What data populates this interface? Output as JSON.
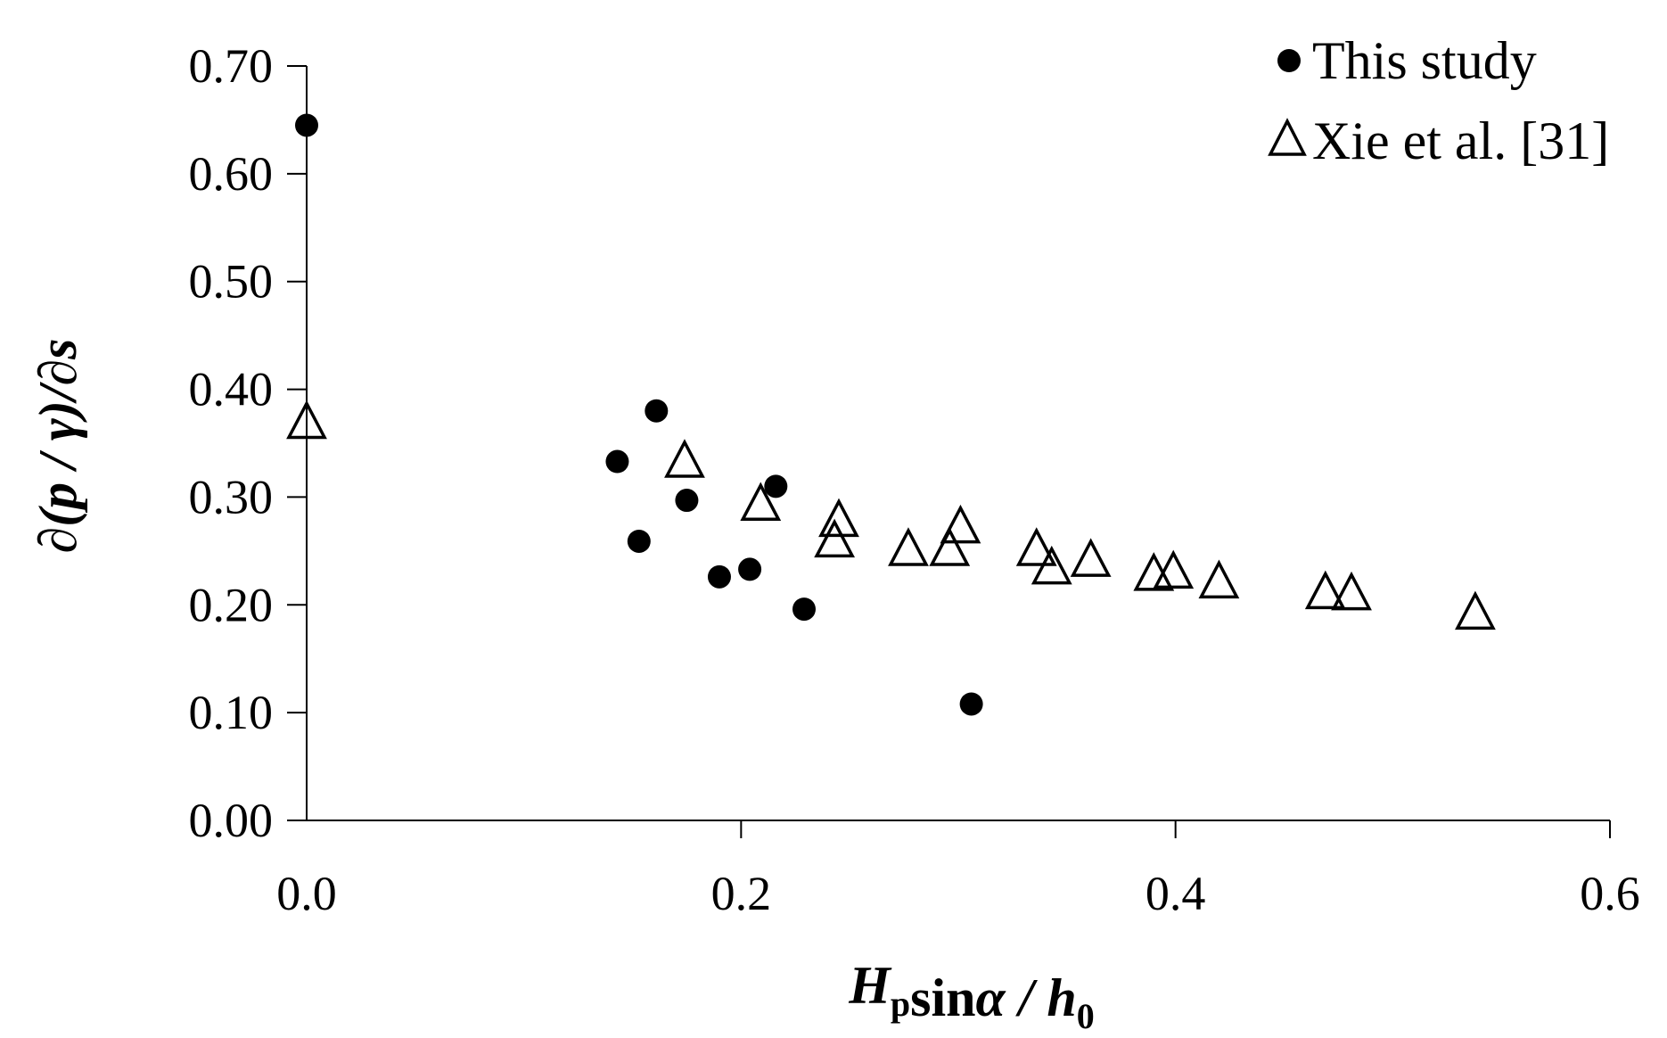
{
  "chart_data": {
    "type": "scatter",
    "xlabel": {
      "parts": [
        {
          "text": "H",
          "italic": true
        },
        {
          "text": "p",
          "italic": false,
          "sub": true
        },
        {
          "text": "sin",
          "italic": false
        },
        {
          "text": "α / h",
          "italic": true
        },
        {
          "text": "0",
          "italic": false,
          "sub": true
        }
      ]
    },
    "ylabel": "∂(p / γ)/∂s",
    "xlim": [
      0.0,
      0.6
    ],
    "ylim": [
      0.0,
      0.7
    ],
    "x_ticks": [
      0.0,
      0.2,
      0.4,
      0.6
    ],
    "x_tick_labels": [
      "0.0",
      "0.2",
      "0.4",
      "0.6"
    ],
    "y_ticks": [
      0.0,
      0.1,
      0.2,
      0.3,
      0.4,
      0.5,
      0.6,
      0.7
    ],
    "y_tick_labels": [
      "0.00",
      "0.10",
      "0.20",
      "0.30",
      "0.40",
      "0.50",
      "0.60",
      "0.70"
    ],
    "grid": false,
    "legend_position": "top-right",
    "series": [
      {
        "name": "This study",
        "marker": "filled-circle",
        "color": "#000000",
        "points": [
          [
            0.0,
            0.645
          ],
          [
            0.143,
            0.333
          ],
          [
            0.153,
            0.259
          ],
          [
            0.161,
            0.38
          ],
          [
            0.175,
            0.297
          ],
          [
            0.19,
            0.226
          ],
          [
            0.204,
            0.233
          ],
          [
            0.216,
            0.31
          ],
          [
            0.229,
            0.196
          ],
          [
            0.306,
            0.108
          ]
        ]
      },
      {
        "name": "Xie et al. [31]",
        "marker": "open-triangle",
        "color": "#000000",
        "points": [
          [
            0.0,
            0.368
          ],
          [
            0.174,
            0.332
          ],
          [
            0.209,
            0.292
          ],
          [
            0.245,
            0.277
          ],
          [
            0.243,
            0.258
          ],
          [
            0.277,
            0.25
          ],
          [
            0.296,
            0.25
          ],
          [
            0.301,
            0.271
          ],
          [
            0.336,
            0.25
          ],
          [
            0.343,
            0.233
          ],
          [
            0.361,
            0.24
          ],
          [
            0.39,
            0.227
          ],
          [
            0.399,
            0.229
          ],
          [
            0.42,
            0.22
          ],
          [
            0.469,
            0.21
          ],
          [
            0.481,
            0.209
          ],
          [
            0.538,
            0.191
          ]
        ]
      }
    ]
  }
}
